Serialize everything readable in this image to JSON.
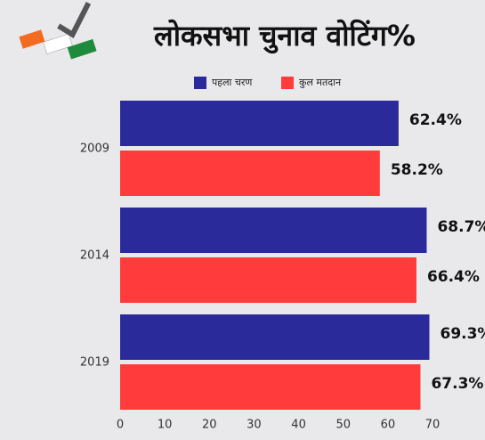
{
  "chart_data": {
    "type": "barh",
    "title": "लोकसभा चुनाव वोटिंग%",
    "categories": [
      "2009",
      "2014",
      "2019"
    ],
    "series": [
      {
        "name": "पहला चरण",
        "color": "#2b2a9a",
        "values": [
          62.4,
          68.7,
          69.3
        ],
        "value_labels": [
          "62.4%",
          "68.7%",
          "69.3%"
        ]
      },
      {
        "name": "कुल मतदान",
        "color": "#ff3b3b",
        "values": [
          58.2,
          66.4,
          67.3
        ],
        "value_labels": [
          "58.2%",
          "66.4%",
          "67.3%"
        ]
      }
    ],
    "xlim": [
      0,
      70
    ],
    "xticks": [
      0,
      10,
      20,
      30,
      40,
      50,
      60,
      70
    ],
    "grid": false,
    "legend": "top"
  }
}
